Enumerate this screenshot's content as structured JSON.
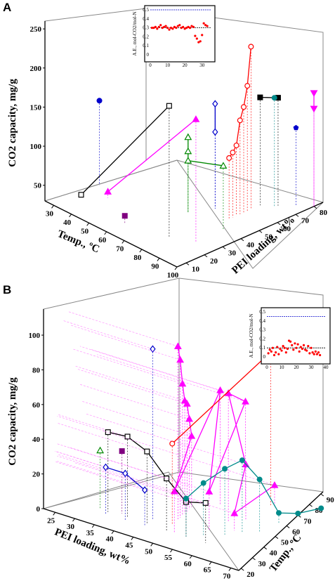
{
  "figure": {
    "panels": [
      "A",
      "B"
    ]
  },
  "chart_data": [
    {
      "panel": "A",
      "type": "scatter",
      "zlabel": "CO2 capacity, mg/g",
      "xlabel": "Temp., ºC",
      "ylabel": "PEI loading, wt%",
      "z_ticks": [
        50,
        100,
        150,
        200,
        250
      ],
      "x_ticks": [
        30,
        40,
        50,
        60,
        70,
        80,
        90,
        100
      ],
      "y_ticks": [
        10,
        20,
        30,
        40,
        50,
        60,
        70,
        80
      ],
      "series": [
        {
          "color": "#000000",
          "marker": "open-square",
          "points": [
            [
              30,
              28
            ],
            [
              80,
              198
            ]
          ]
        },
        {
          "color": "#ff00ff",
          "marker": "filled-triangle",
          "points": [
            [
              40,
              38
            ],
            [
              90,
              187
            ]
          ]
        },
        {
          "color": "#0000cc",
          "marker": "filled-circle",
          "points": [
            [
              30,
              138
            ]
          ]
        },
        {
          "color": "#800080",
          "marker": "filled-square",
          "points": [
            [
              60,
              40
            ]
          ]
        },
        {
          "color": "#008800",
          "marker": "open-triangle",
          "points": [
            [
              70,
              126
            ],
            [
              70,
              108
            ],
            [
              70,
              96
            ],
            [
              90,
              112
            ]
          ]
        },
        {
          "color": "#0000cc",
          "marker": "open-diamond",
          "points": [
            [
              75,
              164
            ],
            [
              75,
              128
            ]
          ]
        },
        {
          "color": "#ff0000",
          "marker": "open-circle",
          "points": [
            [
              85,
              238
            ],
            [
              85,
              190
            ],
            [
              85,
              165
            ],
            [
              85,
              150
            ],
            [
              85,
              120
            ],
            [
              85,
              113
            ],
            [
              85,
              108
            ]
          ]
        },
        {
          "color": "#000000",
          "marker": "filled-square",
          "points": [
            [
              85,
              168
            ],
            [
              90,
              168
            ]
          ]
        },
        {
          "color": "#008b8b",
          "marker": "filled-circle",
          "points": [
            [
              90,
              170
            ]
          ]
        },
        {
          "color": "#0000cc",
          "marker": "filled-pentagon",
          "points": [
            [
              95,
              130
            ]
          ]
        },
        {
          "color": "#ff00ff",
          "marker": "filled-triangle-down",
          "points": [
            [
              100,
              175
            ],
            [
              100,
              155
            ]
          ]
        }
      ],
      "inset": {
        "ylabel": "A.E., mol-CO2/mol-N",
        "x_ticks": [
          0,
          10,
          20,
          30
        ],
        "y_ticks": [
          0,
          0.1,
          0.2,
          0.3,
          0.4,
          0.5
        ],
        "xlim": [
          0,
          35
        ],
        "ylim": [
          0,
          0.5
        ],
        "ref_line_blue": 0.5,
        "ref_line_black": 0.3,
        "x": [
          1,
          2,
          3,
          4,
          5,
          6,
          7,
          8,
          9,
          10,
          11,
          12,
          13,
          14,
          15,
          16,
          17,
          18,
          19,
          20,
          21,
          22,
          23,
          24,
          25,
          26,
          27,
          28,
          29,
          30,
          31,
          32,
          33
        ],
        "y": [
          0.3,
          0.3,
          0.31,
          0.29,
          0.31,
          0.33,
          0.3,
          0.31,
          0.32,
          0.3,
          0.28,
          0.3,
          0.29,
          0.31,
          0.3,
          0.32,
          0.33,
          0.3,
          0.31,
          0.29,
          0.3,
          0.31,
          0.3,
          0.32,
          0.31,
          0.21,
          0.18,
          0.14,
          0.15,
          0.22,
          0.35,
          0.33,
          0.32
        ]
      }
    },
    {
      "panel": "B",
      "type": "scatter",
      "zlabel": "CO2 capacity, mg/g",
      "xlabel": "PEI loading, wt%",
      "ylabel": "Temp., ºC",
      "z_ticks": [
        0,
        20,
        40,
        60,
        80,
        100
      ],
      "x_ticks": [
        25,
        30,
        35,
        40,
        45,
        50,
        55,
        60,
        65,
        70
      ],
      "y_ticks": [
        20,
        30,
        40,
        50,
        60,
        70,
        80,
        90
      ],
      "series": [
        {
          "color": "#000000",
          "marker": "open-square",
          "points": [
            [
              35,
              46
            ],
            [
              40,
              47
            ],
            [
              45,
              42
            ],
            [
              50,
              30
            ],
            [
              55,
              20
            ],
            [
              60,
              23
            ]
          ]
        },
        {
          "color": "#0000cc",
          "marker": "open-circle-diamond",
          "points": [
            [
              35,
              27
            ],
            [
              40,
              27
            ],
            [
              45,
              21
            ]
          ]
        },
        {
          "color": "#008800",
          "marker": "open-triangle",
          "points": [
            [
              33,
              34
            ]
          ]
        },
        {
          "color": "#800080",
          "marker": "filled-square",
          "points": [
            [
              38,
              36
            ]
          ]
        },
        {
          "color": "#0000cc",
          "marker": "open-diamond",
          "points": [
            [
              45,
              98
            ]
          ]
        },
        {
          "color": "#ff00ff",
          "marker": "filled-triangle",
          "points": [
            [
              50,
              100
            ],
            [
              50,
              91
            ],
            [
              50,
              76
            ],
            [
              50,
              65
            ],
            [
              50,
              62
            ],
            [
              50,
              52
            ],
            [
              50,
              41
            ],
            [
              52,
              24
            ],
            [
              55,
              66
            ],
            [
              58,
              22
            ],
            [
              60,
              60
            ],
            [
              60,
              74
            ],
            [
              63,
              32
            ],
            [
              63,
              10
            ],
            [
              66,
              13
            ]
          ]
        },
        {
          "color": "#ff0000",
          "marker": "open-circle",
          "points": [
            [
              50,
              47
            ],
            [
              65,
              89
            ]
          ]
        },
        {
          "color": "#008b8b",
          "marker": "filled-circle",
          "points": [
            [
              55,
              22
            ],
            [
              58,
              30
            ],
            [
              62,
              38
            ],
            [
              65,
              42
            ],
            [
              68,
              30
            ],
            [
              70,
              6
            ],
            [
              72,
              1
            ],
            [
              75,
              0
            ]
          ]
        }
      ],
      "inset": {
        "ylabel": "A.E., mol-CO2/mol-N",
        "x_ticks": [
          0,
          10,
          20,
          30,
          40
        ],
        "y_ticks": [
          0,
          0.1,
          0.2,
          0.3,
          0.4,
          0.5
        ],
        "xlim": [
          0,
          40
        ],
        "ylim": [
          0,
          0.5
        ],
        "ref_line_blue": 0.45,
        "ref_line_black": 0.1,
        "x": [
          1,
          2,
          3,
          4,
          5,
          6,
          7,
          8,
          9,
          10,
          11,
          12,
          13,
          14,
          15,
          16,
          17,
          18,
          19,
          20,
          21,
          22,
          23,
          24,
          25,
          26,
          27,
          28,
          29,
          30,
          31,
          32,
          33,
          34,
          35,
          36
        ],
        "y": [
          0.04,
          0.08,
          0.06,
          0.1,
          0.02,
          0.05,
          0.11,
          0.03,
          0.09,
          0.07,
          0.12,
          0.1,
          0.05,
          0.09,
          0.18,
          0.17,
          0.13,
          0.08,
          0.15,
          0.1,
          0.14,
          0.06,
          0.11,
          0.09,
          0.13,
          0.08,
          0.07,
          0.12,
          0.04,
          0.1,
          0.05,
          0.03,
          0.06,
          0.03,
          0.05,
          0.02
        ]
      }
    }
  ]
}
